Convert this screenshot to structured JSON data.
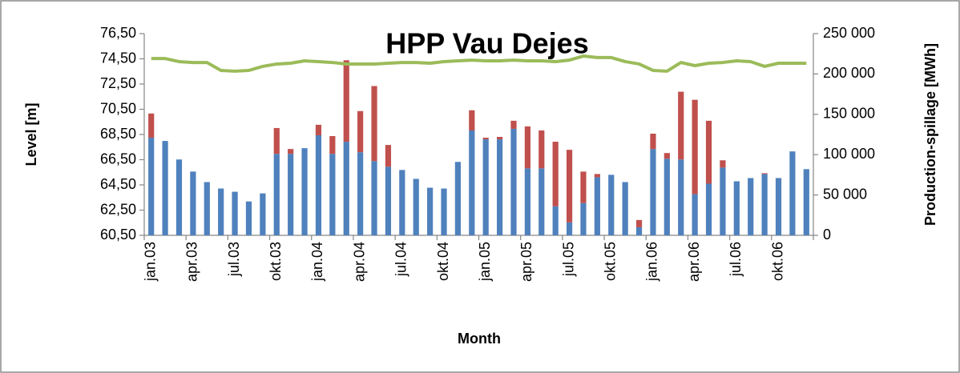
{
  "chart_data": {
    "type": "combo",
    "title": "HPP Vau Dejes",
    "x_label": "Month",
    "y_label": "Level [m]",
    "y2_label": "Production-spillage [MWh]",
    "categories": [
      "jan.03",
      null,
      null,
      "apr.03",
      null,
      null,
      "jul.03",
      null,
      null,
      "okt.03",
      null,
      null,
      "jan.04",
      null,
      null,
      "apr.04",
      null,
      null,
      "jul.04",
      null,
      null,
      "okt.04",
      null,
      null,
      "jan.05",
      null,
      null,
      "apr.05",
      null,
      null,
      "jul.05",
      null,
      null,
      "okt.05",
      null,
      null,
      "jan.06",
      null,
      null,
      "apr.06",
      null,
      null,
      "jul.06",
      null,
      null,
      "okt.06",
      null,
      null
    ],
    "stacked": true,
    "series": [
      {
        "type": "bar",
        "axis": "y2",
        "color": "#4f81bd",
        "values": [
          121000,
          117000,
          94000,
          79000,
          66000,
          58000,
          54000,
          42000,
          52000,
          101000,
          101000,
          108000,
          124000,
          101000,
          116000,
          103000,
          92000,
          85000,
          81000,
          70000,
          59000,
          58000,
          91000,
          130000,
          119000,
          119000,
          132000,
          83000,
          83000,
          36000,
          16000,
          40000,
          72000,
          75000,
          66000,
          10000,
          107000,
          95000,
          94000,
          51000,
          64000,
          84000,
          67000,
          71000,
          76000,
          71000,
          104000,
          82000
        ]
      },
      {
        "type": "bar",
        "axis": "y2",
        "color": "#c0504d",
        "values": [
          30000,
          0,
          0,
          0,
          0,
          0,
          0,
          0,
          0,
          32000,
          6000,
          0,
          13000,
          22000,
          101000,
          51000,
          93000,
          27000,
          0,
          0,
          0,
          0,
          0,
          25000,
          2000,
          3000,
          10000,
          52000,
          47000,
          80000,
          90000,
          39000,
          4000,
          0,
          0,
          9000,
          19000,
          7000,
          84000,
          117000,
          78000,
          9000,
          0,
          0,
          1000,
          0,
          0,
          0
        ]
      },
      {
        "type": "line",
        "color": "#9bbb59",
        "values": [
          74.52,
          74.52,
          74.28,
          74.21,
          74.21,
          73.58,
          73.52,
          73.58,
          73.9,
          74.09,
          74.15,
          74.34,
          74.28,
          74.21,
          74.09,
          74.09,
          74.09,
          74.15,
          74.21,
          74.21,
          74.15,
          74.28,
          74.34,
          74.4,
          74.34,
          74.34,
          74.4,
          74.34,
          74.34,
          74.28,
          74.4,
          74.72,
          74.6,
          74.6,
          74.28,
          74.09,
          73.58,
          73.52,
          74.21,
          73.96,
          74.15,
          74.21,
          74.34,
          74.28,
          73.9,
          74.15,
          74.15,
          74.15
        ]
      }
    ],
    "ylim": [
      60.5,
      76.5
    ],
    "yticks": [
      {
        "value": 60.5,
        "label": "60,50"
      },
      {
        "value": 62.5,
        "label": "62,50"
      },
      {
        "value": 64.5,
        "label": "64,50"
      },
      {
        "value": 66.5,
        "label": "66,50"
      },
      {
        "value": 68.5,
        "label": "68,50"
      },
      {
        "value": 70.5,
        "label": "70,50"
      },
      {
        "value": 72.5,
        "label": "72,50"
      },
      {
        "value": 74.5,
        "label": "74,50"
      },
      {
        "value": 76.5,
        "label": "76,50"
      }
    ],
    "y2lim": [
      0,
      250000
    ],
    "y2ticks": [
      0,
      {
        "value": 50000,
        "label": "50 000"
      },
      {
        "value": 100000,
        "label": "100 000"
      },
      {
        "value": 150000,
        "label": "150 000"
      },
      {
        "value": 200000,
        "label": "200 000"
      },
      {
        "value": 250000,
        "label": "250 000"
      }
    ]
  }
}
